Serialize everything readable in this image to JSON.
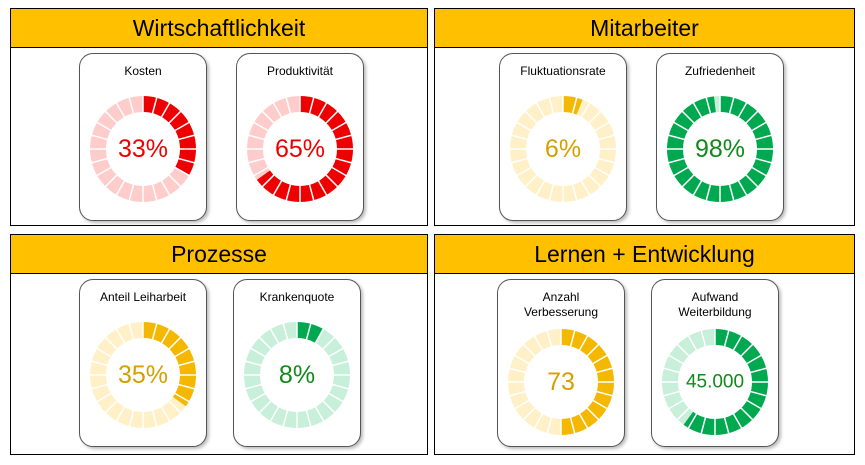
{
  "panels": [
    {
      "title": "Wirtschaftlichkeit",
      "gauges": [
        {
          "label": "Kosten",
          "value": 33,
          "value_label": "33%",
          "color": "#ee0000",
          "track": "#ffcccc",
          "text_color": "#ee0000"
        },
        {
          "label": "Produktivität",
          "value": 65,
          "value_label": "65%",
          "color": "#ee0000",
          "track": "#ffcccc",
          "text_color": "#ee0000"
        }
      ]
    },
    {
      "title": "Mitarbeiter",
      "gauges": [
        {
          "label": "Fluktuationsrate",
          "value": 6,
          "value_label": "6%",
          "color": "#f5b800",
          "track": "#fff0c8",
          "text_color": "#d4a000"
        },
        {
          "label": "Zufriedenheit",
          "value": 98,
          "value_label": "98%",
          "color": "#00a84f",
          "track": "#c8efd9",
          "text_color": "#118a1a"
        }
      ]
    },
    {
      "title": "Prozesse",
      "gauges": [
        {
          "label": "Anteil Leiharbeit",
          "value": 35,
          "value_label": "35%",
          "color": "#f5b800",
          "track": "#fff0c8",
          "text_color": "#d4a000"
        },
        {
          "label": "Krankenquote",
          "value": 8,
          "value_label": "8%",
          "color": "#00a84f",
          "track": "#c8efd9",
          "text_color": "#118a1a"
        }
      ]
    },
    {
      "title": "Lernen + Entwicklung",
      "gauges": [
        {
          "label": "Anzahl\nVerbesserung",
          "value": 73,
          "ring": 50,
          "color": "#f5b800",
          "track": "#fff0c8",
          "text_color": "#d4a000"
        },
        {
          "label": "Aufwand\nWeiterbildung",
          "value": 45000,
          "value_label": "45.000",
          "ring": 60,
          "color": "#00a84f",
          "track": "#c8efd9",
          "text_color": "#118a1a"
        }
      ]
    }
  ]
}
